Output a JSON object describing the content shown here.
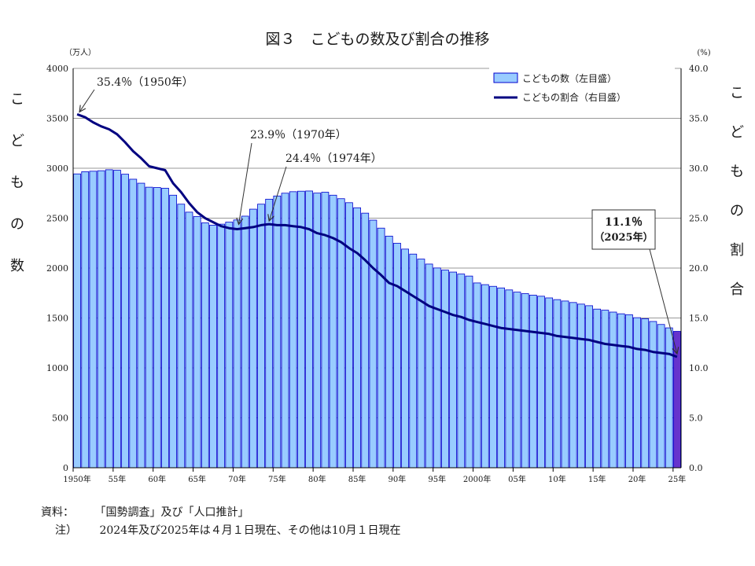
{
  "chart_data": {
    "type": "bar+line",
    "title": "図３　こどもの数及び割合の推移",
    "y_left_unit": "（万人）",
    "y_right_unit": "(%)",
    "y_left_label": "こどもの数",
    "y_right_label": "こどもの割合",
    "y_left_range": [
      0,
      4000
    ],
    "y_right_range": [
      0,
      40
    ],
    "y_left_ticks": [
      "0",
      "500",
      "1000",
      "1500",
      "2000",
      "2500",
      "3000",
      "3500",
      "4000"
    ],
    "y_right_ticks": [
      "0.0",
      "5.0",
      "10.0",
      "15.0",
      "20.0",
      "25.0",
      "30.0",
      "35.0",
      "40.0"
    ],
    "x_tick_labels": [
      {
        "year": 1950,
        "label": "1950年"
      },
      {
        "year": 1955,
        "label": "55年"
      },
      {
        "year": 1960,
        "label": "60年"
      },
      {
        "year": 1965,
        "label": "65年"
      },
      {
        "year": 1970,
        "label": "70年"
      },
      {
        "year": 1975,
        "label": "75年"
      },
      {
        "year": 1980,
        "label": "80年"
      },
      {
        "year": 1985,
        "label": "85年"
      },
      {
        "year": 1990,
        "label": "90年"
      },
      {
        "year": 1995,
        "label": "95年"
      },
      {
        "year": 2000,
        "label": "2000年"
      },
      {
        "year": 2005,
        "label": "05年"
      },
      {
        "year": 2010,
        "label": "10年"
      },
      {
        "year": 2015,
        "label": "15年"
      },
      {
        "year": 2020,
        "label": "20年"
      },
      {
        "year": 2025,
        "label": "25年"
      }
    ],
    "legend": {
      "position": "top-right",
      "bar_label": "こどもの数（左目盛）",
      "line_label": "こどもの割合（右目盛）"
    },
    "years": [
      1950,
      1951,
      1952,
      1953,
      1954,
      1955,
      1956,
      1957,
      1958,
      1959,
      1960,
      1961,
      1962,
      1963,
      1964,
      1965,
      1966,
      1967,
      1968,
      1969,
      1970,
      1971,
      1972,
      1973,
      1974,
      1975,
      1976,
      1977,
      1978,
      1979,
      1980,
      1981,
      1982,
      1983,
      1984,
      1985,
      1986,
      1987,
      1988,
      1989,
      1990,
      1991,
      1992,
      1993,
      1994,
      1995,
      1996,
      1997,
      1998,
      1999,
      2000,
      2001,
      2002,
      2003,
      2004,
      2005,
      2006,
      2007,
      2008,
      2009,
      2010,
      2011,
      2012,
      2013,
      2014,
      2015,
      2016,
      2017,
      2018,
      2019,
      2020,
      2021,
      2022,
      2023,
      2024,
      2025
    ],
    "children_10k": [
      2943,
      2965,
      2970,
      2975,
      2985,
      2980,
      2940,
      2890,
      2850,
      2810,
      2807,
      2800,
      2730,
      2640,
      2560,
      2517,
      2453,
      2430,
      2440,
      2460,
      2482,
      2520,
      2590,
      2640,
      2690,
      2722,
      2750,
      2765,
      2770,
      2772,
      2751,
      2760,
      2730,
      2695,
      2655,
      2604,
      2550,
      2480,
      2400,
      2320,
      2249,
      2190,
      2140,
      2090,
      2040,
      2001,
      1980,
      1960,
      1940,
      1920,
      1851,
      1834,
      1817,
      1801,
      1781,
      1759,
      1744,
      1729,
      1718,
      1701,
      1684,
      1670,
      1655,
      1639,
      1623,
      1589,
      1578,
      1559,
      1542,
      1533,
      1503,
      1493,
      1465,
      1435,
      1401,
      1366
    ],
    "ratio_pct": [
      35.4,
      35.1,
      34.6,
      34.2,
      33.9,
      33.4,
      32.6,
      31.7,
      31.0,
      30.2,
      30.0,
      29.8,
      28.5,
      27.6,
      26.5,
      25.6,
      25.0,
      24.6,
      24.2,
      24.0,
      23.9,
      24.0,
      24.1,
      24.3,
      24.4,
      24.3,
      24.3,
      24.2,
      24.1,
      23.9,
      23.5,
      23.3,
      23.0,
      22.6,
      22.0,
      21.5,
      20.8,
      20.0,
      19.3,
      18.5,
      18.2,
      17.7,
      17.2,
      16.7,
      16.2,
      15.9,
      15.6,
      15.3,
      15.1,
      14.8,
      14.6,
      14.4,
      14.2,
      14.0,
      13.9,
      13.8,
      13.7,
      13.6,
      13.5,
      13.4,
      13.2,
      13.1,
      13.0,
      12.9,
      12.8,
      12.6,
      12.4,
      12.3,
      12.2,
      12.1,
      11.9,
      11.8,
      11.6,
      11.5,
      11.4,
      11.1
    ],
    "annotations": [
      {
        "text": "35.4％（1950年）",
        "year": 1950,
        "value": 35.4
      },
      {
        "text": "23.9％（1970年）",
        "year": 1970,
        "value": 23.9
      },
      {
        "text": "24.4％（1974年）",
        "year": 1974,
        "value": 24.4
      },
      {
        "text": "11.1％",
        "text2": "（2025年）",
        "year": 2025,
        "value": 11.1
      }
    ],
    "highlight_year": 2025,
    "colors": {
      "bar": "#99ccff",
      "bar_stroke": "#0000cc",
      "bar_highlight": "#6633cc",
      "line": "#000080",
      "grid": "#999999"
    }
  },
  "notes": {
    "source_label": "資料：",
    "source_text": "「国勢調査」及び「人口推計」",
    "note_label": "注）",
    "note_text": "2024年及び2025年は４月１日現在、その他は10月１日現在"
  }
}
